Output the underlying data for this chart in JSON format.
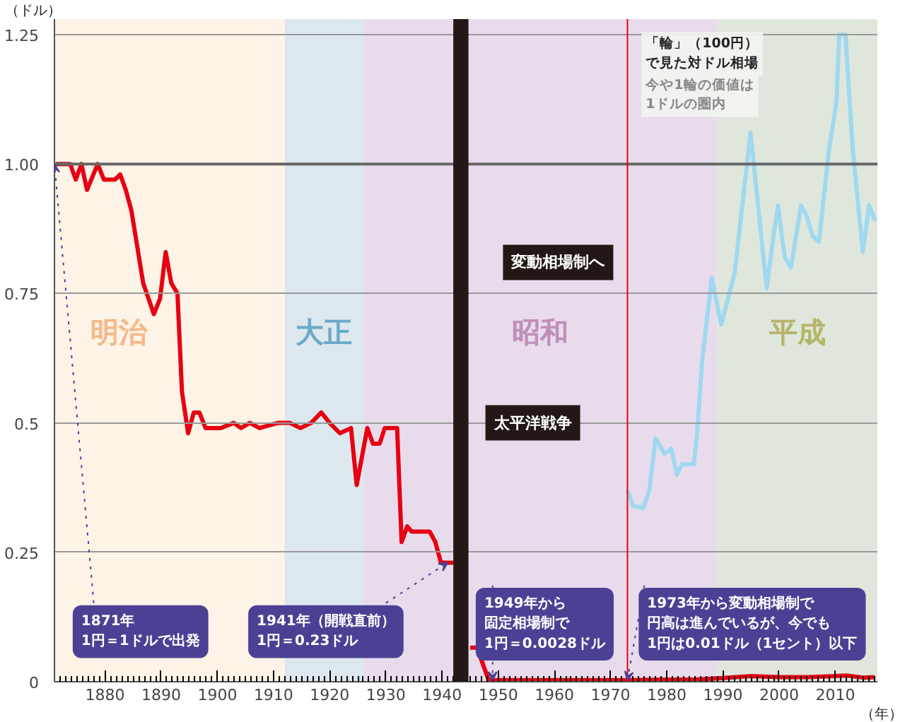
{
  "chart_data": {
    "type": "line",
    "xlabel": "（年）",
    "ylabel": "（ドル）",
    "xlim": [
      1871,
      2017.5
    ],
    "ylim": [
      0,
      1.28
    ],
    "xticks": [
      1880,
      1890,
      1900,
      1910,
      1920,
      1930,
      1940,
      1950,
      1960,
      1970,
      1980,
      1990,
      2000,
      2010
    ],
    "yticks": [
      0,
      0.25,
      0.5,
      0.75,
      {
        "value": 1,
        "label": "1.00"
      },
      1.25
    ],
    "grid": "y",
    "marker": "none",
    "line_style": "solid",
    "series": [
      {
        "color": "#e60012",
        "x": [
          1871.2,
          1873.8,
          1874.8,
          1875.8,
          1876.8,
          1878.7,
          1879.8,
          1881.8,
          1882.7,
          1883.7,
          1884.7,
          1886.8,
          1888.7,
          1889.8,
          1890.8,
          1891.8,
          1892.9,
          1893.7,
          1894.8,
          1895.8,
          1896.8,
          1897.9,
          1899.2,
          1900.6,
          1902.9,
          1904.2,
          1905.8,
          1907.5,
          1910.8,
          1912.9,
          1914.8,
          1916.7,
          1918.5,
          1920,
          1921.8,
          1923.8,
          1924.8,
          1926.7,
          1927.7,
          1928.9,
          1929.8,
          1932,
          1932.8,
          1933.8,
          1934.6,
          1936.3,
          1937.8,
          1938.8,
          1939.8,
          1942,
          1943,
          1945,
          1946.2,
          1948.3,
          1973,
          1980,
          1985,
          1990,
          1995,
          2000,
          2005,
          2010,
          2012,
          2015,
          2017
        ],
        "values": [
          1.0,
          1.0,
          0.97,
          1.0,
          0.95,
          1.0,
          0.97,
          0.97,
          0.98,
          0.95,
          0.91,
          0.77,
          0.71,
          0.74,
          0.83,
          0.77,
          0.75,
          0.56,
          0.48,
          0.52,
          0.52,
          0.49,
          0.49,
          0.49,
          0.5,
          0.49,
          0.5,
          0.49,
          0.5,
          0.5,
          0.49,
          0.5,
          0.52,
          0.5,
          0.48,
          0.49,
          0.38,
          0.49,
          0.46,
          0.46,
          0.49,
          0.49,
          0.27,
          0.3,
          0.29,
          0.29,
          0.29,
          0.27,
          0.23,
          0.23,
          null,
          0.066,
          0.066,
          0.003,
          0.003,
          0.004,
          0.004,
          0.007,
          0.011,
          0.009,
          0.009,
          0.011,
          0.012,
          0.008,
          0.009
        ]
      },
      {
        "color": "#a0d8f0",
        "x": [
          1973,
          1974,
          1975.8,
          1976.9,
          1978,
          1979.6,
          1980.8,
          1981.8,
          1982.7,
          1984.8,
          1985.4,
          1986.3,
          1988,
          1989.7,
          1992.1,
          1994.9,
          1997.8,
          1999.1,
          1999.8,
          2001,
          2002.1,
          2003.9,
          2004.9,
          2006,
          2007.1,
          2008.9,
          2010.2,
          2010.7,
          2011.8,
          2013.1,
          2014.9,
          2016,
          2017.1
        ],
        "values": [
          0.37,
          0.34,
          0.335,
          0.37,
          0.47,
          0.44,
          0.45,
          0.4,
          0.42,
          0.42,
          0.48,
          0.62,
          0.78,
          0.69,
          0.79,
          1.06,
          0.76,
          0.87,
          0.92,
          0.82,
          0.8,
          0.92,
          0.9,
          0.86,
          0.85,
          1.03,
          1.12,
          1.25,
          1.25,
          1.03,
          0.83,
          0.92,
          0.89
        ]
      }
    ],
    "bands": [
      {
        "axis": "x",
        "from": 1871,
        "to": 1912,
        "label": "明治",
        "color": "#fdf3e6"
      },
      {
        "axis": "x",
        "from": 1912,
        "to": 1926,
        "label": "大正",
        "color": "#dde8ee"
      },
      {
        "axis": "x",
        "from": 1926,
        "to": 1989,
        "label": "昭和",
        "color": "#e8dcec"
      },
      {
        "axis": "x",
        "from": 1989,
        "to": 2017.5,
        "label": "平成",
        "color": "#dfe7dc"
      },
      {
        "axis": "x",
        "from": 1942,
        "to": 1944.7,
        "label": "太平洋戦争",
        "color": "#231815"
      }
    ],
    "ref_lines": [
      {
        "axis": "y",
        "value": 1,
        "color": "#666666"
      },
      {
        "axis": "x",
        "value": 1973,
        "label": "変動相場制へ",
        "color": "#e60012"
      }
    ],
    "annotations": [
      {
        "text": "1871年\n1円＝1ドルで出発",
        "x": 1871,
        "y": 1
      },
      {
        "text": "1941年（開戦直前）\n1円＝0.23ドル",
        "x": 1941,
        "y": 0.23
      },
      {
        "text": "1949年から固定相場制で1円＝0.0028ドル",
        "x": 1949,
        "y": 0.0028
      },
      {
        "text": "1973年から変動相場制で円高は進んでいるが、今でも1円は0.01ドル（1セント）以下",
        "x": 1973,
        "y": 0.003
      },
      "「輪」（100円）で見た対ドル相場",
      "今や1輪の価値は\n1ドルの圏内"
    ]
  }
}
